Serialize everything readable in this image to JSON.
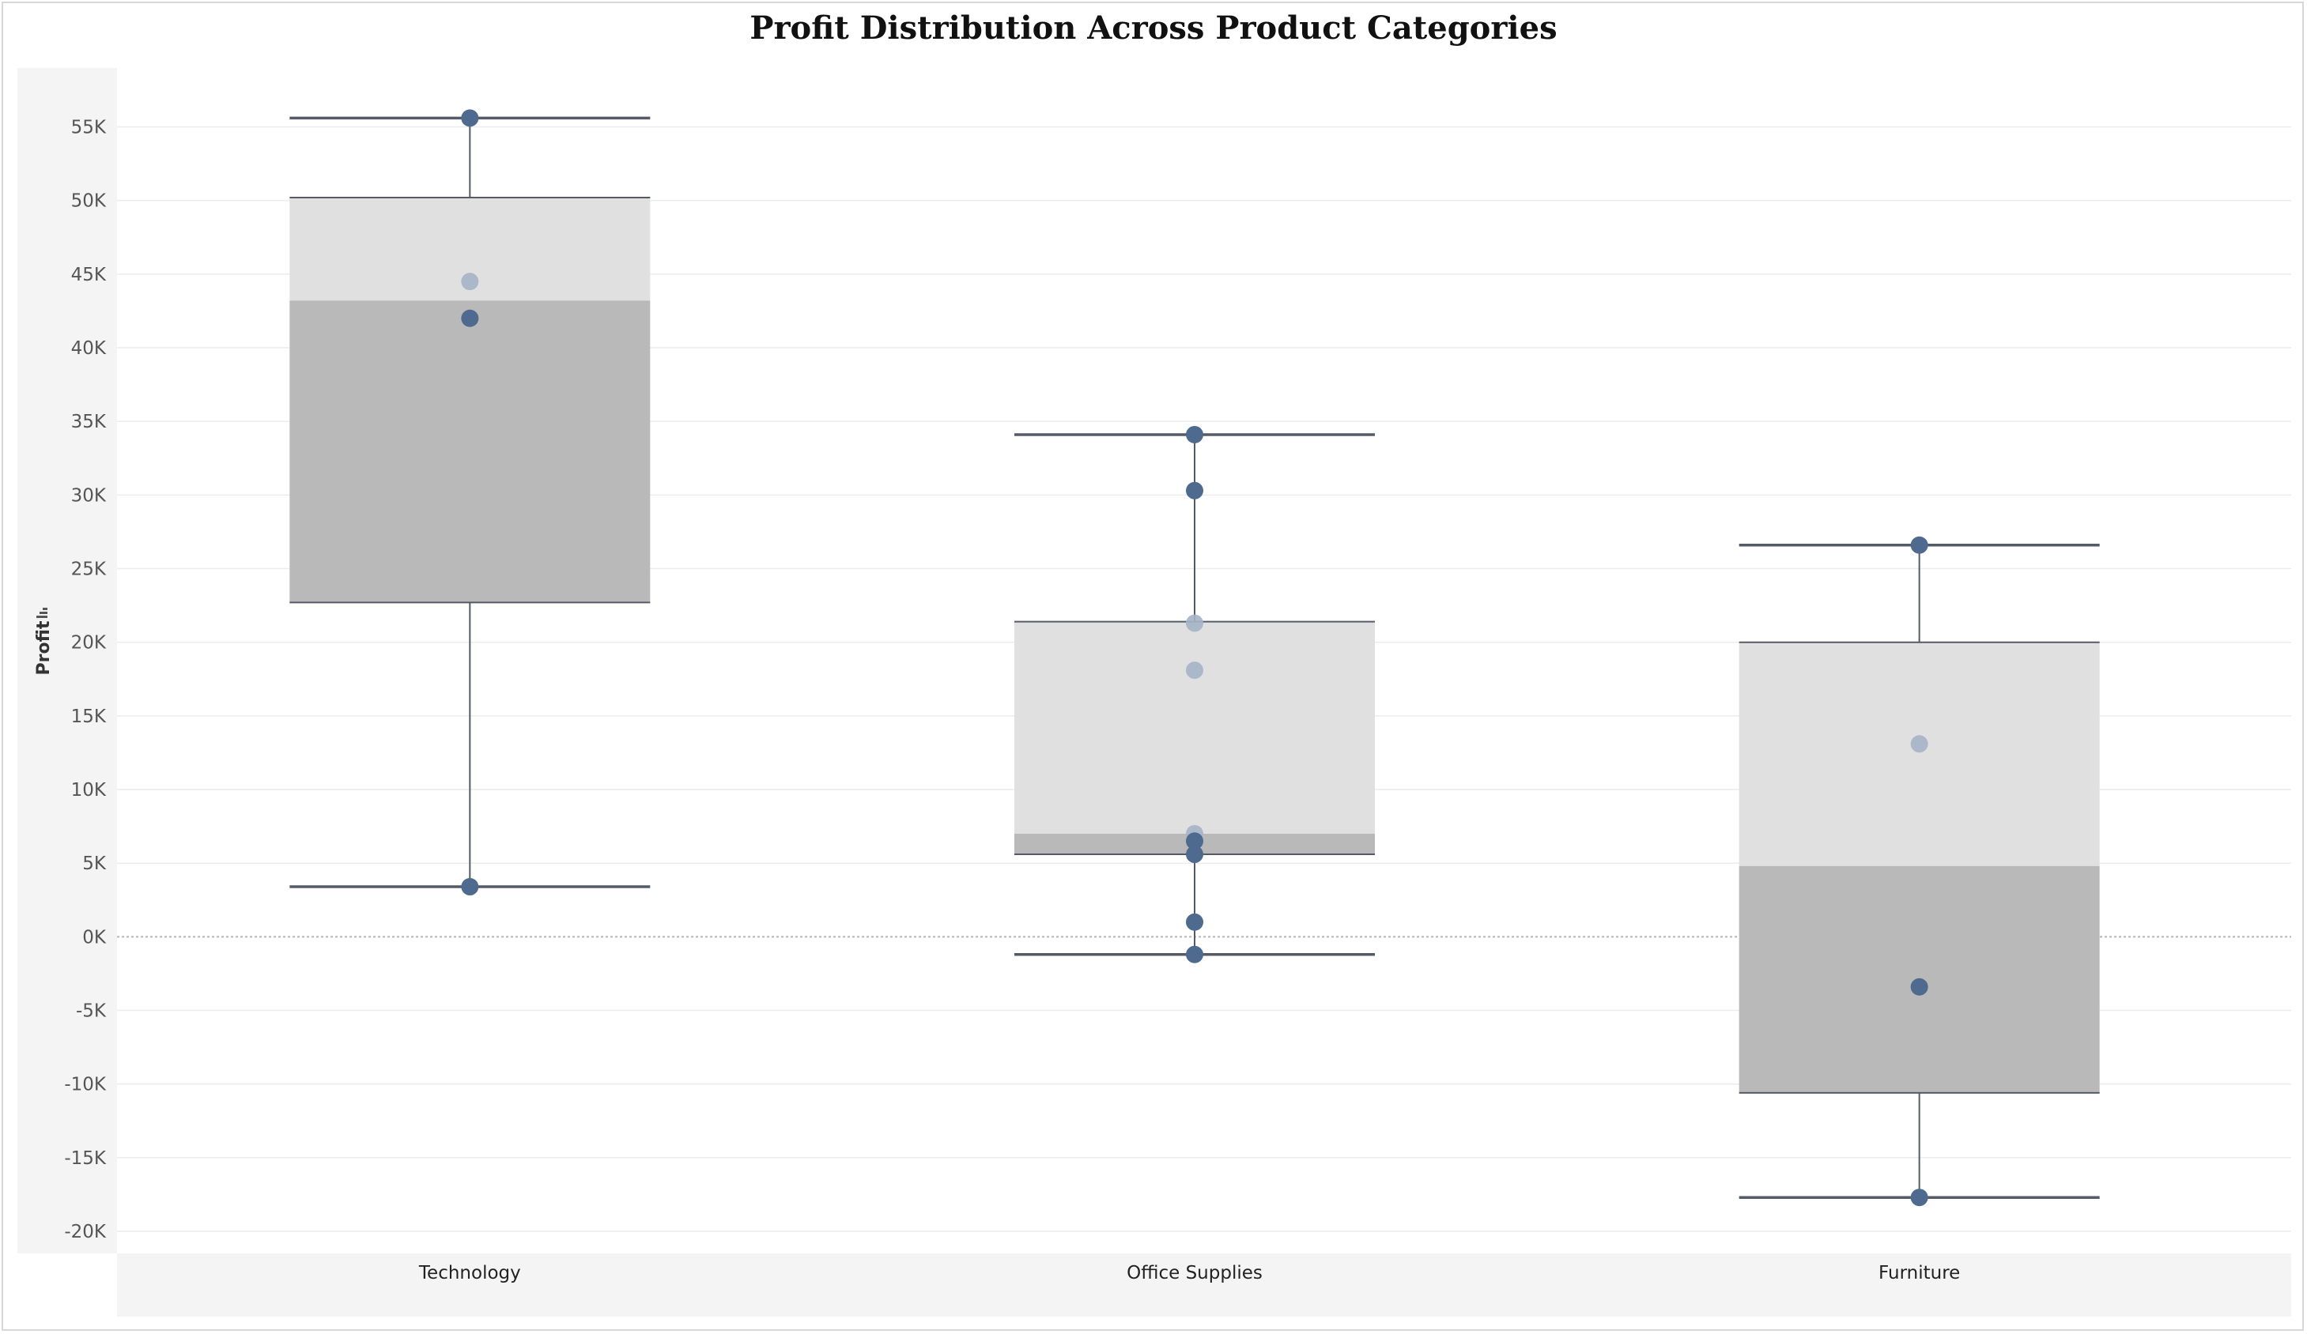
{
  "chart_data": {
    "type": "box",
    "title": "Profit Distribution Across Product Categories",
    "ylabel": "Profit",
    "xlabel": "",
    "ylim": [
      -21500,
      59000
    ],
    "yticks": [
      55000,
      50000,
      45000,
      40000,
      35000,
      30000,
      25000,
      20000,
      15000,
      10000,
      5000,
      0,
      -5000,
      -10000,
      -15000,
      -20000
    ],
    "ytick_labels": [
      "55K",
      "50K",
      "45K",
      "40K",
      "35K",
      "30K",
      "25K",
      "20K",
      "15K",
      "10K",
      "5K",
      "0K",
      "-5K",
      "-10K",
      "-15K",
      "-20K"
    ],
    "categories": [
      "Technology",
      "Office Supplies",
      "Furniture"
    ],
    "boxes": [
      {
        "category": "Technology",
        "whisker_low": 3400,
        "q1": 22700,
        "median": 43200,
        "q3": 50200,
        "whisker_high": 55600,
        "points": [
          {
            "value": 55600,
            "faded": false
          },
          {
            "value": 44500,
            "faded": true
          },
          {
            "value": 42000,
            "faded": false
          },
          {
            "value": 3400,
            "faded": false
          }
        ]
      },
      {
        "category": "Office Supplies",
        "whisker_low": -1200,
        "q1": 5600,
        "median": 7000,
        "q3": 21400,
        "whisker_high": 34100,
        "points": [
          {
            "value": 34100,
            "faded": false
          },
          {
            "value": 30300,
            "faded": false
          },
          {
            "value": 21300,
            "faded": true
          },
          {
            "value": 18100,
            "faded": true
          },
          {
            "value": 7000,
            "faded": true
          },
          {
            "value": 6500,
            "faded": false
          },
          {
            "value": 5600,
            "faded": false
          },
          {
            "value": 1000,
            "faded": false
          },
          {
            "value": -1200,
            "faded": false
          }
        ]
      },
      {
        "category": "Furniture",
        "whisker_low": -17700,
        "q1": -10600,
        "median": 4800,
        "q3": 20000,
        "whisker_high": 26600,
        "points": [
          {
            "value": 26600,
            "faded": false
          },
          {
            "value": 13100,
            "faded": true
          },
          {
            "value": -3400,
            "faded": false
          },
          {
            "value": -17700,
            "faded": false
          }
        ]
      }
    ],
    "grid": true,
    "colors": {
      "upper_box": "#e0e0e0",
      "lower_box": "#b9b9b9",
      "whisker": "#555b66",
      "point": "#4e6a8e",
      "point_faded": "#a5b4c6",
      "grid": "#ececec",
      "zero_line": "#b5b5b5",
      "panel_bg": "#f4f4f4"
    }
  }
}
